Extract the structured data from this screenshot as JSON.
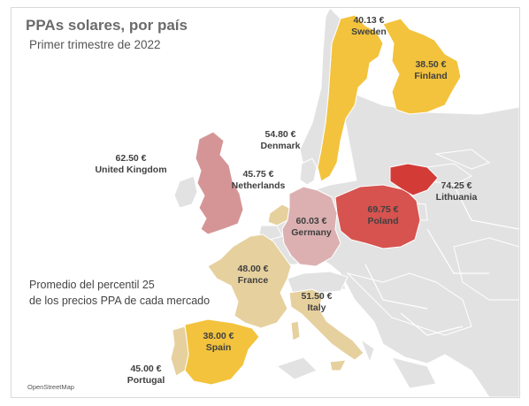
{
  "header": {
    "title": "PPAs solares, por país",
    "subtitle": "Primer trimestre de 2022"
  },
  "note": {
    "line1": "Promedio del percentil 25",
    "line2": "de los precios PPA de cada mercado"
  },
  "attribution": "OpenStreetMap",
  "colors": {
    "land": "#e2e2e2",
    "border": "#ffffff",
    "sea": "#ffffff",
    "yellow": "#f3c33d",
    "beige": "#e6d09e",
    "pink_light": "#dcb0b1",
    "pink": "#d59597",
    "red_mid": "#d6534f",
    "red": "#d33b37"
  },
  "countries": [
    {
      "country": "Sweden",
      "value": "40.13 €"
    },
    {
      "country": "Finland",
      "value": "38.50 €"
    },
    {
      "country": "Denmark",
      "value": "54.80 €"
    },
    {
      "country": "United Kingdom",
      "value": "62.50 €"
    },
    {
      "country": "Netherlands",
      "value": "45.75 €"
    },
    {
      "country": "Lithuania",
      "value": "74.25 €"
    },
    {
      "country": "Germany",
      "value": "60.03 €"
    },
    {
      "country": "Poland",
      "value": "69.75 €"
    },
    {
      "country": "France",
      "value": "48.00 €"
    },
    {
      "country": "Italy",
      "value": "51.50 €"
    },
    {
      "country": "Spain",
      "value": "38.00 €"
    },
    {
      "country": "Portugal",
      "value": "45.00 €"
    }
  ]
}
